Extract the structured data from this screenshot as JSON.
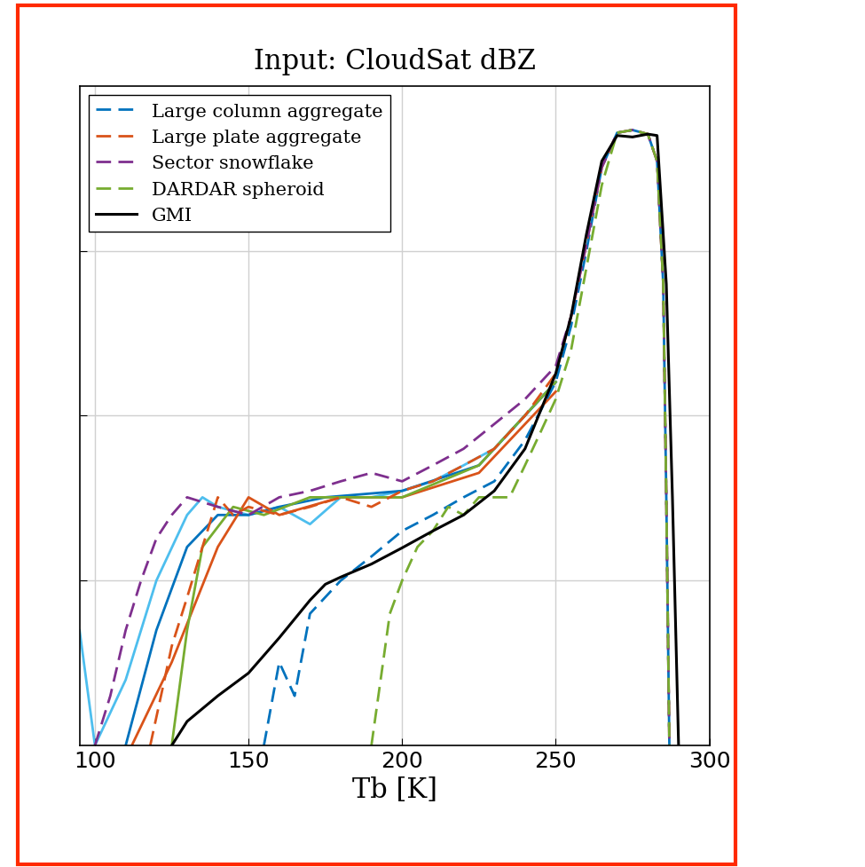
{
  "chart_data": {
    "type": "line",
    "title": "Input: CloudSat dBZ",
    "x_label": "Tb [K]",
    "log": "y",
    "grid": true,
    "legend": "upper left",
    "tick_labels": "x",
    "xlim": [
      95,
      300
    ],
    "xticks": [
      100,
      150,
      200,
      250,
      300
    ],
    "ylim": [
      1e-06,
      0.01
    ],
    "yticks": [
      1e-05,
      0.0001,
      0.001
    ],
    "series": [
      {
        "name": null,
        "color": "#4dbeee",
        "line_style": "solid",
        "x": [
          95,
          100,
          110,
          120,
          130,
          135,
          140,
          150,
          160,
          170,
          180,
          190,
          200,
          210,
          220,
          230,
          240,
          250
        ],
        "values": [
          5e-06,
          1e-06,
          2.5e-06,
          1e-05,
          2.5e-05,
          3.2e-05,
          2.8e-05,
          2.5e-05,
          2.8e-05,
          2.2e-05,
          3.2e-05,
          3.2e-05,
          3.5e-05,
          4e-05,
          5e-05,
          6.3e-05,
          0.0001,
          0.00016
        ]
      },
      {
        "name": null,
        "color": "#0072bd",
        "line_style": "solid",
        "x": [
          110,
          120,
          130,
          140,
          150,
          160,
          175,
          200,
          225,
          250
        ],
        "values": [
          1e-06,
          5e-06,
          1.6e-05,
          2.5e-05,
          2.5e-05,
          2.8e-05,
          3.2e-05,
          3.5e-05,
          5e-05,
          0.00016
        ]
      },
      {
        "name": null,
        "color": "#d95319",
        "line_style": "solid",
        "x": [
          112,
          125,
          140,
          150,
          160,
          180,
          200,
          225,
          250
        ],
        "values": [
          1e-06,
          3.2e-06,
          1.6e-05,
          3.2e-05,
          2.5e-05,
          3.2e-05,
          3.2e-05,
          4.5e-05,
          0.00014
        ]
      },
      {
        "name": null,
        "color": "#77ac30",
        "line_style": "solid",
        "x": [
          125,
          130,
          135,
          145,
          155,
          170,
          200,
          225,
          250
        ],
        "values": [
          1e-06,
          5e-06,
          1.6e-05,
          2.8e-05,
          2.5e-05,
          3.2e-05,
          3.2e-05,
          5e-05,
          0.00016
        ]
      },
      {
        "name": "Large column aggregate",
        "color": "#0072bd",
        "line_style": "dashed",
        "x": [
          155,
          160,
          165,
          170,
          180,
          190,
          200,
          210,
          220,
          230,
          240,
          250,
          255,
          260,
          265,
          270,
          275,
          280,
          283,
          285,
          286,
          287
        ],
        "values": [
          1e-06,
          3.2e-06,
          2e-06,
          6.3e-06,
          1e-05,
          1.4e-05,
          2e-05,
          2.5e-05,
          3.2e-05,
          4e-05,
          7.1e-05,
          0.00016,
          0.00035,
          0.001,
          0.0032,
          0.0052,
          0.0054,
          0.0051,
          0.0035,
          0.00063,
          3.2e-05,
          1e-06
        ]
      },
      {
        "name": "Large plate aggregate",
        "color": "#d95319",
        "line_style": "dashed",
        "x": [
          118,
          125,
          130,
          135,
          140,
          145,
          150,
          160,
          170,
          180,
          190,
          200,
          210,
          220,
          230,
          240,
          250,
          255,
          260,
          265,
          270,
          275,
          280,
          283,
          285,
          286,
          287
        ],
        "values": [
          1e-06,
          4e-06,
          7.9e-06,
          1.6e-05,
          3.2e-05,
          2.5e-05,
          2.8e-05,
          2.5e-05,
          2.8e-05,
          3.2e-05,
          2.8e-05,
          3.5e-05,
          4e-05,
          5e-05,
          6.3e-05,
          0.0001,
          0.00018,
          0.0004,
          0.0011,
          0.0032,
          0.0052,
          0.0054,
          0.0051,
          0.0035,
          0.00063,
          3.2e-05,
          1e-06
        ]
      },
      {
        "name": "Sector snowflake",
        "color": "#7e2f8e",
        "line_style": "dashed",
        "x": [
          100,
          105,
          110,
          115,
          120,
          125,
          130,
          140,
          150,
          160,
          170,
          180,
          190,
          200,
          210,
          220,
          230,
          240,
          250,
          255,
          260,
          265,
          270,
          275,
          280,
          283,
          285,
          286,
          287
        ],
        "values": [
          1e-06,
          2e-06,
          5e-06,
          1e-05,
          1.8e-05,
          2.5e-05,
          3.2e-05,
          2.8e-05,
          2.5e-05,
          3.2e-05,
          3.5e-05,
          4e-05,
          4.5e-05,
          4e-05,
          5e-05,
          6.3e-05,
          8.9e-05,
          0.000126,
          0.0002,
          0.0004,
          0.0011,
          0.0032,
          0.0052,
          0.0054,
          0.0051,
          0.0035,
          0.00063,
          3.2e-05,
          1e-06
        ]
      },
      {
        "name": "DARDAR spheroid",
        "color": "#77ac30",
        "line_style": "dashed",
        "x": [
          190,
          193,
          196,
          200,
          205,
          210,
          215,
          220,
          225,
          230,
          235,
          240,
          245,
          250,
          255,
          260,
          265,
          270,
          275,
          280,
          283,
          285,
          286,
          287
        ],
        "values": [
          1e-06,
          2.5e-06,
          6.3e-06,
          1e-05,
          1.6e-05,
          2e-05,
          2.8e-05,
          2.5e-05,
          3.2e-05,
          3.2e-05,
          3.2e-05,
          5e-05,
          7.9e-05,
          0.000126,
          0.00025,
          0.00079,
          0.0025,
          0.0052,
          0.0054,
          0.0051,
          0.0035,
          0.00063,
          3.2e-05,
          1e-06
        ]
      },
      {
        "name": "GMI",
        "color": "#000000",
        "line_style": "solid",
        "x": [
          125,
          130,
          140,
          150,
          160,
          170,
          175,
          180,
          190,
          200,
          210,
          220,
          230,
          240,
          250,
          255,
          260,
          265,
          270,
          275,
          280,
          283,
          286,
          288,
          290
        ],
        "values": [
          1e-06,
          1.4e-06,
          2e-06,
          2.75e-06,
          4.5e-06,
          7.6e-06,
          9.5e-06,
          1.05e-05,
          1.26e-05,
          1.58e-05,
          2e-05,
          2.5e-05,
          3.5e-05,
          6.3e-05,
          0.00018,
          0.0004,
          0.00126,
          0.0035,
          0.005,
          0.0049,
          0.0051,
          0.005,
          0.00063,
          3.2e-05,
          1e-06
        ]
      }
    ]
  }
}
